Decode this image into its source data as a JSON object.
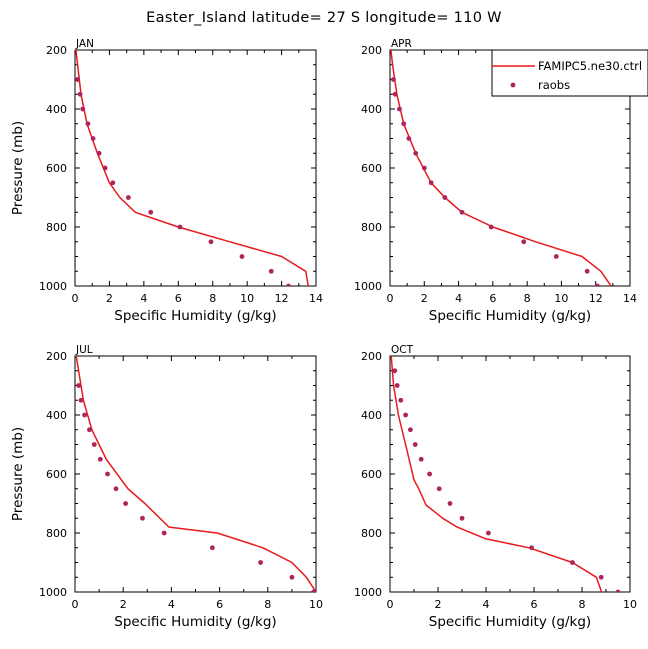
{
  "title": "Easter_Island  latitude= 27 S longitude= 110 W",
  "legend": {
    "items": [
      {
        "label": "FAMIPC5.ne30.ctrl",
        "kind": "line",
        "color": "#e8191c"
      },
      {
        "label": "raobs",
        "kind": "marker",
        "color": "#b0245c"
      }
    ]
  },
  "colors": {
    "model": "#e8191c",
    "obs": "#b0245c",
    "axes": "#000000"
  },
  "chart_data": [
    {
      "type": "line",
      "panel": "JAN",
      "xlabel": "Specific Humidity (g/kg)",
      "ylabel": "Pressure (mb)",
      "xlim": [
        0,
        14
      ],
      "ylim": [
        1000,
        200
      ],
      "xticks": [
        0,
        2,
        4,
        6,
        8,
        10,
        12,
        14
      ],
      "yticks": [
        200,
        400,
        600,
        800,
        1000
      ],
      "series": [
        {
          "name": "FAMIPC5.ne30.ctrl",
          "kind": "line",
          "x": [
            13.55,
            13.4,
            12.0,
            9.0,
            6.0,
            3.5,
            2.6,
            2.0,
            1.3,
            0.7,
            0.35,
            0.15,
            0.05
          ],
          "y": [
            1000,
            950,
            900,
            850,
            800,
            750,
            700,
            650,
            550,
            450,
            350,
            250,
            200
          ]
        },
        {
          "name": "raobs",
          "kind": "marker",
          "x": [
            12.4,
            11.4,
            9.7,
            7.9,
            6.1,
            4.4,
            3.1,
            2.2,
            1.75,
            1.4,
            1.05,
            0.75,
            0.45,
            0.3,
            0.15
          ],
          "y": [
            1000,
            950,
            900,
            850,
            800,
            750,
            700,
            650,
            600,
            550,
            500,
            450,
            400,
            350,
            300
          ]
        }
      ]
    },
    {
      "type": "line",
      "panel": "APR",
      "xlabel": "Specific Humidity (g/kg)",
      "ylabel": "",
      "xlim": [
        0,
        14
      ],
      "ylim": [
        1000,
        200
      ],
      "xticks": [
        0,
        2,
        4,
        6,
        8,
        10,
        12,
        14
      ],
      "yticks": [
        200,
        400,
        600,
        800,
        1000
      ],
      "series": [
        {
          "name": "FAMIPC5.ne30.ctrl",
          "kind": "line",
          "x": [
            12.9,
            12.3,
            11.2,
            8.5,
            6.0,
            4.2,
            3.2,
            2.4,
            1.5,
            0.8,
            0.4,
            0.15,
            0.05
          ],
          "y": [
            1000,
            950,
            900,
            850,
            800,
            750,
            700,
            650,
            550,
            450,
            350,
            250,
            200
          ]
        },
        {
          "name": "raobs",
          "kind": "marker",
          "x": [
            12.1,
            11.5,
            9.7,
            7.8,
            5.9,
            4.2,
            3.2,
            2.4,
            2.0,
            1.5,
            1.1,
            0.8,
            0.55,
            0.3,
            0.2
          ],
          "y": [
            1000,
            950,
            900,
            850,
            800,
            750,
            700,
            650,
            600,
            550,
            500,
            450,
            400,
            350,
            300
          ]
        }
      ]
    },
    {
      "type": "line",
      "panel": "JUL",
      "xlabel": "Specific Humidity (g/kg)",
      "ylabel": "Pressure (mb)",
      "xlim": [
        0,
        10
      ],
      "ylim": [
        1000,
        200
      ],
      "xticks": [
        0,
        2,
        4,
        6,
        8,
        10
      ],
      "yticks": [
        200,
        400,
        600,
        800,
        1000
      ],
      "series": [
        {
          "name": "FAMIPC5.ne30.ctrl",
          "kind": "line",
          "x": [
            10.0,
            9.6,
            9.0,
            7.8,
            5.9,
            3.9,
            2.9,
            2.2,
            1.3,
            0.7,
            0.35,
            0.15,
            0.05
          ],
          "y": [
            1000,
            950,
            900,
            850,
            800,
            780,
            700,
            650,
            550,
            450,
            350,
            250,
            200
          ]
        },
        {
          "name": "raobs",
          "kind": "marker",
          "x": [
            9.9,
            9.0,
            7.7,
            5.7,
            3.7,
            2.8,
            2.1,
            1.7,
            1.35,
            1.05,
            0.8,
            0.6,
            0.4,
            0.25,
            0.15
          ],
          "y": [
            1000,
            950,
            900,
            850,
            800,
            750,
            700,
            650,
            600,
            550,
            500,
            450,
            400,
            350,
            300
          ]
        }
      ]
    },
    {
      "type": "line",
      "panel": "OCT",
      "xlabel": "Specific Humidity (g/kg)",
      "ylabel": "",
      "xlim": [
        0,
        10
      ],
      "ylim": [
        1000,
        200
      ],
      "xticks": [
        0,
        2,
        4,
        6,
        8,
        10
      ],
      "yticks": [
        200,
        400,
        600,
        800,
        1000
      ],
      "series": [
        {
          "name": "FAMIPC5.ne30.ctrl",
          "kind": "line",
          "x": [
            8.9,
            8.6,
            7.6,
            5.8,
            4.0,
            2.8,
            2.2,
            1.5,
            1.2,
            1.0,
            0.65,
            0.35,
            0.15,
            0.05
          ],
          "y": [
            1020,
            950,
            900,
            850,
            820,
            780,
            750,
            705,
            650,
            620,
            500,
            400,
            300,
            200
          ]
        },
        {
          "name": "raobs",
          "kind": "marker",
          "x": [
            9.5,
            8.8,
            7.6,
            5.9,
            4.1,
            3.0,
            2.5,
            2.05,
            1.65,
            1.3,
            1.05,
            0.85,
            0.65,
            0.45,
            0.3,
            0.2
          ],
          "y": [
            1000,
            950,
            900,
            850,
            800,
            750,
            700,
            650,
            600,
            550,
            500,
            450,
            400,
            350,
            300,
            250
          ]
        }
      ]
    }
  ]
}
